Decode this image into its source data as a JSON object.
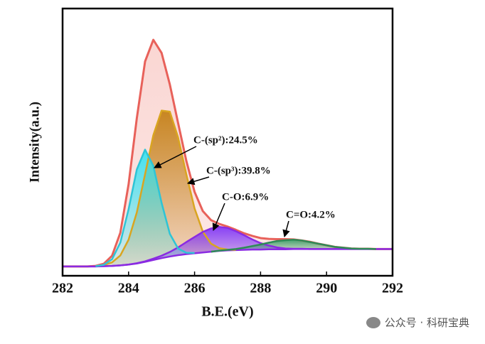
{
  "chart_data": {
    "type": "line",
    "xlabel": "B.E.(eV)",
    "ylabel": "Intensity(a.u.)",
    "xlim": [
      282,
      292
    ],
    "xticks": [
      282,
      284,
      286,
      288,
      290,
      292
    ],
    "ylim": [
      0,
      100
    ],
    "x": [
      282,
      282.25,
      282.5,
      282.75,
      283,
      283.25,
      283.5,
      283.75,
      284,
      284.25,
      284.5,
      284.75,
      285,
      285.25,
      285.5,
      285.75,
      286,
      286.25,
      286.5,
      286.75,
      287,
      287.25,
      287.5,
      287.75,
      288,
      288.25,
      288.5,
      288.75,
      289,
      289.25,
      289.5,
      289.75,
      290,
      290.25,
      290.5,
      290.75,
      291,
      291.25,
      291.5,
      291.75,
      292
    ],
    "baseline": [
      3.5,
      3.5,
      3.5,
      3.5,
      3.5,
      3.6,
      3.7,
      3.9,
      4.2,
      4.6,
      5.2,
      5.9,
      6.6,
      7.2,
      7.7,
      8.1,
      8.4,
      8.7,
      9.0,
      9.3,
      9.5,
      9.6,
      9.7,
      9.8,
      9.8,
      9.9,
      9.9,
      9.9,
      10,
      10,
      10,
      10,
      10,
      10,
      10,
      10,
      10,
      10,
      10,
      10,
      10
    ],
    "series": [
      {
        "color": "#e8615a",
        "fill": "#f4a49c",
        "values": [
          3.5,
          3.5,
          3.5,
          3.5,
          3.7,
          4.5,
          7.5,
          16.1,
          34.2,
          59.0,
          80.2,
          88.3,
          83.4,
          71.6,
          57.2,
          43.0,
          31.4,
          24.2,
          20.8,
          19.4,
          18.4,
          17.2,
          15.9,
          14.9,
          14.1,
          13.8,
          13.7,
          13.7,
          13.6,
          13.2,
          12.7,
          12.0,
          11.4,
          10.8,
          10.5,
          10.2,
          10.1,
          10.1,
          10.0,
          10.0,
          10.0
        ]
      },
      {
        "name": "C-(sp³):39.8%",
        "color": "#d9a520",
        "fill": "#c27c0e",
        "values": [
          null,
          null,
          null,
          null,
          3.6,
          4.0,
          5.0,
          7.6,
          13.5,
          23.7,
          38.0,
          52.6,
          61.8,
          61.4,
          51.8,
          38.0,
          25.2,
          16.5,
          12.0,
          10.3,
          9.8,
          9.7,
          null,
          null,
          null,
          null,
          null,
          null,
          null,
          null,
          null,
          null,
          null,
          null,
          null,
          null,
          null,
          null,
          null,
          null,
          null
        ]
      },
      {
        "name": "C-O:6.9%",
        "color": "#8a2be2",
        "fill": "#7b2ff7",
        "values": [
          3.5,
          3.5,
          3.5,
          3.5,
          3.5,
          3.6,
          3.7,
          3.9,
          4.2,
          4.7,
          5.4,
          6.4,
          7.5,
          8.9,
          10.6,
          12.6,
          14.5,
          16.4,
          17.7,
          18.3,
          17.9,
          16.7,
          15.2,
          13.6,
          12.2,
          11.3,
          10.6,
          10.2,
          10.1,
          10.1,
          10.0,
          10,
          10,
          10,
          10,
          10,
          10,
          10,
          10,
          10,
          10
        ]
      },
      {
        "name": "C-(sp²):24.5%",
        "color": "#2ec4d6",
        "fill": "#2fe3f2",
        "values": [
          null,
          null,
          null,
          null,
          3.6,
          4.1,
          6.2,
          12.4,
          24.9,
          39.8,
          47.2,
          41.1,
          27.3,
          15.7,
          10.2,
          8.6,
          8.5,
          null,
          null,
          null,
          null,
          null,
          null,
          null,
          null,
          null,
          null,
          null,
          null,
          null,
          null,
          null,
          null,
          null,
          null,
          null,
          null,
          null,
          null,
          null,
          null
        ]
      },
      {
        "name": "C=O:4.2%",
        "color": "#2e8b57",
        "fill": "#2e9b5f",
        "values": [
          null,
          null,
          null,
          null,
          null,
          null,
          null,
          null,
          null,
          null,
          null,
          null,
          null,
          null,
          null,
          null,
          null,
          null,
          9.0,
          9.4,
          9.7,
          10.0,
          10.5,
          11.1,
          11.7,
          12.4,
          13.0,
          13.3,
          13.5,
          13.2,
          12.6,
          12.0,
          11.4,
          10.8,
          10.5,
          10.2,
          10.1,
          10.1,
          10.0,
          null,
          null
        ]
      }
    ]
  },
  "watermark": "公众号 · 科研宝典"
}
